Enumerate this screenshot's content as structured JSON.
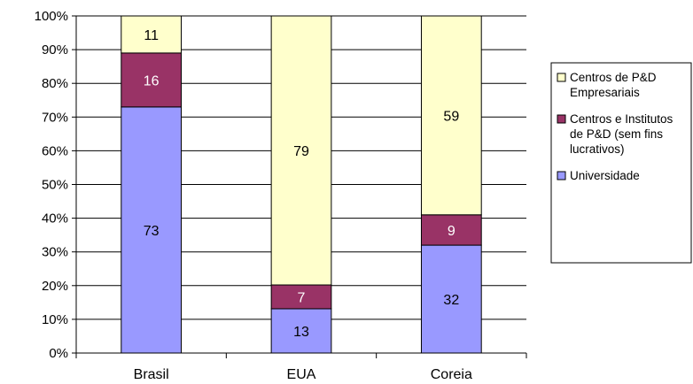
{
  "chart_data": {
    "type": "bar",
    "stacked": "percent",
    "categories": [
      "Brasil",
      "EUA",
      "Coreia"
    ],
    "series": [
      {
        "name": "Universidade",
        "values": [
          73,
          13,
          32
        ],
        "color": "#9999ff",
        "label_color": "#000000"
      },
      {
        "name": "Centros e Institutos de P&D (sem fins lucrativos)",
        "values": [
          16,
          7,
          9
        ],
        "color": "#993366",
        "label_color": "#ffffff"
      },
      {
        "name": "Centros de P&D Empresariais",
        "values": [
          11,
          79,
          59
        ],
        "color": "#ffffcc",
        "label_color": "#000000"
      }
    ],
    "y_ticks": [
      "0%",
      "10%",
      "20%",
      "30%",
      "40%",
      "50%",
      "60%",
      "70%",
      "80%",
      "90%",
      "100%"
    ],
    "ylim": [
      0,
      100
    ],
    "grid": true,
    "legend": {
      "placement": "right",
      "entries": [
        {
          "series_index": 2,
          "lines": [
            "Centros de P&D",
            "Empresariais"
          ]
        },
        {
          "series_index": 1,
          "lines": [
            "Centros e Institutos",
            "de P&D (sem fins",
            "lucrativos)"
          ]
        },
        {
          "series_index": 0,
          "lines": [
            "Universidade"
          ]
        }
      ]
    }
  }
}
